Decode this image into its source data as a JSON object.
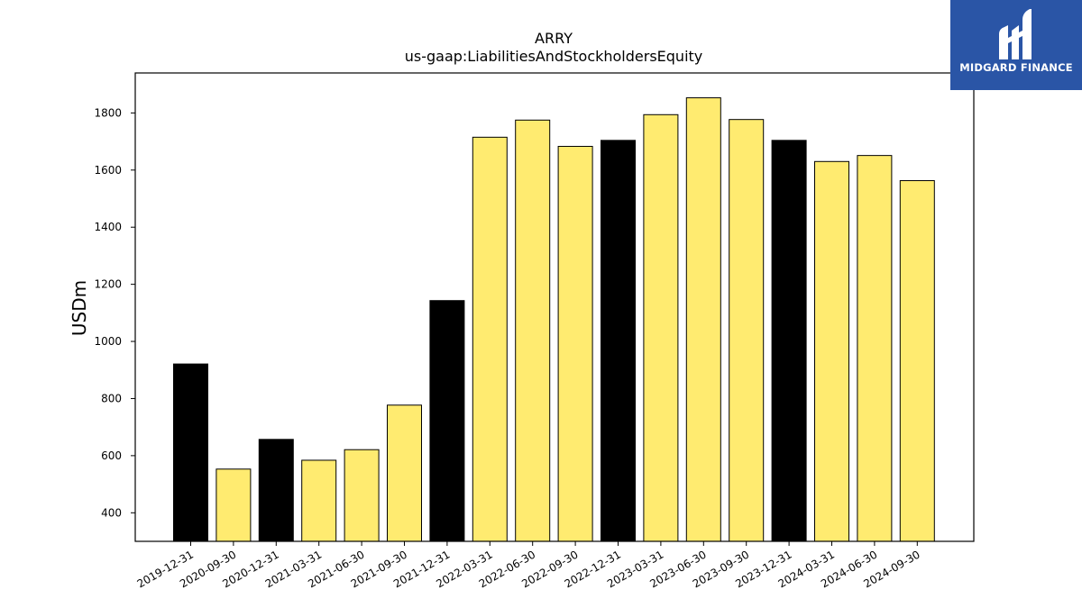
{
  "chart_data": {
    "type": "bar",
    "title": "ARRY",
    "subtitle": "us-gaap:LiabilitiesAndStockholdersEquity",
    "xlabel": "",
    "ylabel": "USDm",
    "ylim": [
      300,
      1940
    ],
    "yticks": [
      400,
      600,
      800,
      1000,
      1200,
      1400,
      1600,
      1800
    ],
    "grid": false,
    "categories": [
      "2019-12-31",
      "2020-09-30",
      "2020-12-31",
      "2021-03-31",
      "2021-06-30",
      "2021-09-30",
      "2021-12-31",
      "2022-03-31",
      "2022-06-30",
      "2022-09-30",
      "2022-12-31",
      "2023-03-31",
      "2023-06-30",
      "2023-09-30",
      "2023-12-31",
      "2024-03-31",
      "2024-06-30",
      "2024-09-30"
    ],
    "values": [
      921,
      553,
      657,
      584,
      621,
      777,
      1143,
      1715,
      1775,
      1683,
      1704,
      1794,
      1853,
      1777,
      1704,
      1630,
      1651,
      1563
    ],
    "colors": [
      "#000000",
      "#ffeb70",
      "#000000",
      "#ffeb70",
      "#ffeb70",
      "#ffeb70",
      "#000000",
      "#ffeb70",
      "#ffeb70",
      "#ffeb70",
      "#000000",
      "#ffeb70",
      "#ffeb70",
      "#ffeb70",
      "#000000",
      "#ffeb70",
      "#ffeb70",
      "#ffeb70"
    ]
  },
  "logo": {
    "text": "MIDGARD FINANCE",
    "background": "#2a55a6"
  }
}
